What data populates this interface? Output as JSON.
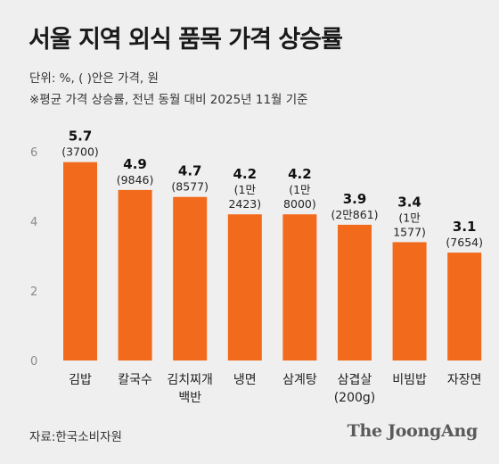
{
  "header": {
    "title": "서울 지역 외식 품목 가격 상승률",
    "unit_note": "단위: %, ( )안은 가격, 원",
    "basis_note": "※평균 가격 상승률, 전년 동월 대비 2025년 11월 기준"
  },
  "footer": {
    "source": "자료:한국소비자원",
    "logo_text": "The JoongAng"
  },
  "colors": {
    "bar": "#f26a1b",
    "axis_text": "#8a8a8a",
    "background": "#efefef"
  },
  "chart_data": {
    "type": "bar",
    "title": "서울 지역 외식 품목 가격 상승률",
    "xlabel": "",
    "ylabel": "",
    "ylim": [
      0,
      6
    ],
    "yticks": [
      0,
      2,
      4,
      6
    ],
    "grid": false,
    "categories": [
      [
        "김밥"
      ],
      [
        "칼국수"
      ],
      [
        "김치찌개",
        "백반"
      ],
      [
        "냉면"
      ],
      [
        "삼계탕"
      ],
      [
        "삼겹살",
        "(200g)"
      ],
      [
        "비빔밥"
      ],
      [
        "자장면"
      ]
    ],
    "values": [
      5.7,
      4.9,
      4.7,
      4.2,
      4.2,
      3.9,
      3.4,
      3.1
    ],
    "value_labels": [
      "5.7",
      "4.9",
      "4.7",
      "4.2",
      "4.2",
      "3.9",
      "3.4",
      "3.1"
    ],
    "price_labels": [
      [
        "(3700)"
      ],
      [
        "(9846)"
      ],
      [
        "(8577)"
      ],
      [
        "(1만",
        "2423)"
      ],
      [
        "(1만",
        "8000)"
      ],
      [
        "(2만861)"
      ],
      [
        "(1만",
        "1577)"
      ],
      [
        "(7654)"
      ]
    ]
  }
}
